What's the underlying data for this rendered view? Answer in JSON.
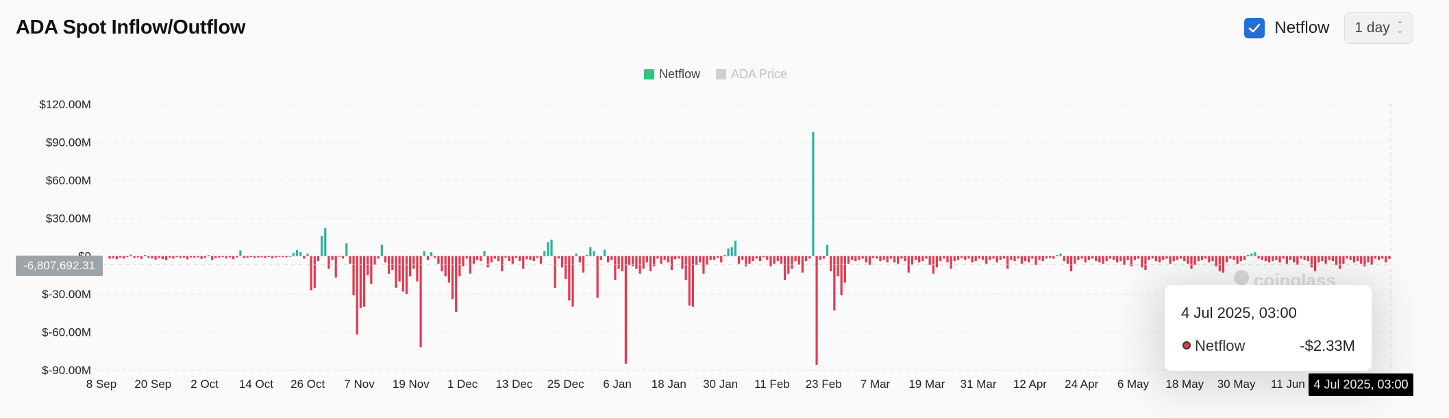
{
  "header": {
    "title": "ADA Spot Inflow/Outflow"
  },
  "controls": {
    "netflow_label": "Netflow",
    "netflow_checked": true,
    "interval_label": "1 day"
  },
  "tooltip": {
    "date": "4 Jul 2025, 03:00",
    "series": "Netflow",
    "value": "-$2.33M"
  },
  "crosshair": {
    "x_label": "4 Jul 2025, 03:00",
    "y_label": "-6,807,692.31"
  },
  "watermark": "coinglass",
  "colors": {
    "positive": "#2bb39a",
    "negative": "#e5374f",
    "legend_netflow": "#31c47c",
    "legend_price": "#cfcfcf"
  },
  "chart_data": {
    "type": "bar",
    "legend": [
      {
        "name": "Netflow",
        "active": true
      },
      {
        "name": "ADA Price",
        "active": false
      }
    ],
    "legend_position": "top-center",
    "yticks": [
      "$120.00M",
      "$90.00M",
      "$60.00M",
      "$30.00M",
      "$0",
      "$-30.00M",
      "$-60.00M",
      "$-90.00M"
    ],
    "ylim": [
      -90,
      120
    ],
    "yunit": "$M",
    "xticks": [
      "8 Sep",
      "20 Sep",
      "2 Oct",
      "14 Oct",
      "26 Oct",
      "7 Nov",
      "19 Nov",
      "1 Dec",
      "13 Dec",
      "25 Dec",
      "6 Jan",
      "18 Jan",
      "30 Jan",
      "11 Feb",
      "23 Feb",
      "7 Mar",
      "19 Mar",
      "31 Mar",
      "12 Apr",
      "24 Apr",
      "6 May",
      "18 May",
      "30 May",
      "11 Jun"
    ],
    "x_start": "2024-09-08",
    "x_end": "2025-07-04",
    "grid": true,
    "series": [
      {
        "name": "Netflow",
        "values": [
          -2.1,
          -1.8,
          -2.5,
          -1.2,
          -2.0,
          -0.8,
          1.2,
          -1.5,
          -1.0,
          -2.2,
          0.9,
          -1.4,
          -1.9,
          -2.8,
          -1.6,
          -2.4,
          -3.1,
          -1.2,
          -2.0,
          -0.9,
          -1.5,
          -1.2,
          -2.6,
          -1.1,
          -1.3,
          -1.0,
          -2.2,
          -1.4,
          0.8,
          -3.0,
          -1.5,
          -1.2,
          -0.8,
          -1.9,
          -1.0,
          -2.4,
          -1.1,
          4.5,
          -1.6,
          -1.2,
          -0.7,
          -1.5,
          -1.1,
          -0.9,
          -1.6,
          -0.7,
          -1.8,
          -1.1,
          -0.6,
          -0.9,
          -1.0,
          -0.5,
          2.5,
          4.8,
          3.2,
          -2.0,
          1.8,
          -27,
          -25,
          -4,
          16,
          22,
          -10,
          -3,
          -17,
          -0.5,
          -2,
          10,
          -6,
          -31,
          -62,
          -41,
          -40,
          -15,
          -22,
          -7,
          -2,
          9,
          -5,
          -14,
          -11,
          -25,
          -20,
          -28,
          -30,
          -16,
          -10,
          -20,
          -72,
          4,
          -3,
          3,
          -1.5,
          -6,
          -12,
          -16,
          -21,
          -34,
          -44,
          -16,
          -8,
          -2,
          -14,
          -6,
          -3,
          -4,
          4,
          -9,
          -5,
          -2,
          -4,
          -12,
          -1.2,
          -4,
          -6,
          -1.5,
          -4,
          -10,
          -2.5,
          -3,
          -4,
          -1.5,
          -6,
          4,
          11,
          13,
          -25,
          -2,
          -9,
          -18,
          -35,
          -40,
          2,
          -5,
          -13,
          1,
          7,
          4,
          -33,
          -3,
          5,
          -5,
          -3,
          -19,
          -10,
          -12,
          -85,
          -7,
          -8,
          -10,
          -14,
          -10,
          -5,
          -12,
          -8,
          -2,
          -6,
          -3,
          -5,
          -11,
          -2.5,
          -2,
          -10,
          -19,
          -39,
          -40,
          -7,
          -5,
          -14,
          -7,
          -3,
          -3,
          -1.5,
          -5,
          1,
          6,
          7,
          12,
          -6,
          -3,
          -8,
          -6,
          -4,
          -2,
          -4,
          -1,
          -3,
          -8,
          -6,
          -4,
          -6,
          -19,
          -14,
          -10,
          -4,
          -7,
          -13,
          -4,
          -2,
          98,
          -86,
          -3,
          -2,
          9,
          -12,
          -43,
          -16,
          -31,
          -21,
          -6,
          -3,
          -4,
          -3,
          -2,
          -5,
          -7,
          -1.5,
          -2,
          -4,
          -3,
          -5,
          -2,
          -5,
          -6,
          -2,
          -4,
          -13,
          -7,
          -3,
          -5,
          -4,
          -2,
          -7,
          -14,
          -9,
          -4,
          -2,
          -5,
          -10,
          -4,
          -3,
          -1.5,
          -3,
          -2,
          -5,
          -4,
          -2,
          -3,
          -6,
          -3,
          -2,
          -5,
          -3,
          -2,
          -10,
          -3,
          -4,
          -2,
          -6,
          -4,
          -5,
          -2,
          -7,
          -3,
          -4,
          -2,
          -1.5,
          -2,
          1,
          2,
          -4,
          -6,
          -12,
          -6,
          -3,
          -2,
          -5,
          -3,
          -2,
          -4,
          -5,
          -6,
          -4,
          -2,
          -3,
          -5,
          -4,
          -7,
          -3,
          -8,
          -3,
          -2,
          -9,
          -11,
          -3,
          -2,
          -4,
          -5,
          -3,
          -2,
          -6,
          -4,
          -3,
          -2,
          -4,
          -6,
          -10,
          -7,
          -4,
          -3,
          -2,
          -5,
          -4,
          -8,
          -12,
          -13,
          -5,
          -2,
          -3,
          -6,
          -4,
          -3,
          1,
          2,
          3,
          -2,
          -3,
          -4,
          -5,
          -4,
          -3,
          -5,
          -2,
          -6,
          -3,
          -5,
          -7,
          -2,
          -3,
          -4,
          -9,
          -12,
          -5,
          -4,
          -6,
          -3,
          -4,
          -7,
          -10,
          -6,
          -2,
          -3,
          -5,
          -4,
          -6,
          -8,
          -5,
          -7,
          -2,
          -3,
          -2,
          -5,
          -2.33
        ]
      }
    ]
  }
}
